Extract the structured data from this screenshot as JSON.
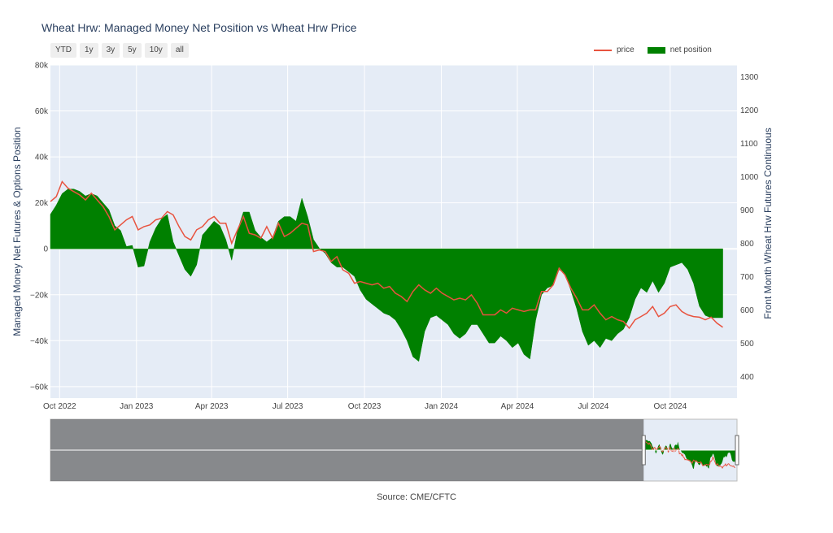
{
  "title": "Wheat Hrw: Managed Money Net Position vs Wheat Hrw Price",
  "range_buttons": [
    "YTD",
    "1y",
    "3y",
    "5y",
    "10y",
    "all"
  ],
  "legend": {
    "price_label": "price",
    "net_label": "net position"
  },
  "source": "Source: CME/CFTC",
  "colors": {
    "price": "#e8533f",
    "net": "#008000",
    "plot_bg": "#e5ecf6",
    "grid": "#ffffff"
  },
  "chart_data": {
    "type": "area",
    "title": "Wheat Hrw: Managed Money Net Position vs Wheat Hrw Price",
    "ylabel_left": "Managed Money Net Futures & Options Position",
    "ylabel_right": "Front Month Wheat Hrw Futures Continuous",
    "ylim_left": [
      -65000,
      80000
    ],
    "ylim_right": [
      335,
      1335
    ],
    "yticks_left": [
      -60000,
      -40000,
      -20000,
      0,
      20000,
      40000,
      60000,
      80000
    ],
    "yticks_left_labels": [
      "−60k",
      "−40k",
      "−20k",
      "0",
      "20k",
      "40k",
      "60k",
      "80k"
    ],
    "yticks_right": [
      400,
      500,
      600,
      700,
      800,
      900,
      1000,
      1100,
      1200,
      1300
    ],
    "xlim": [
      "2022-09-20",
      "2024-12-20"
    ],
    "xticks": [
      "2022-10-01",
      "2023-01-01",
      "2023-04-01",
      "2023-07-01",
      "2023-10-01",
      "2024-01-01",
      "2024-04-01",
      "2024-07-01",
      "2024-10-01"
    ],
    "xtick_labels": [
      "Oct 2022",
      "Jan 2023",
      "Apr 2023",
      "Jul 2023",
      "Oct 2023",
      "Jan 2024",
      "Apr 2024",
      "Jul 2024",
      "Oct 2024"
    ],
    "series": [
      {
        "name": "price",
        "type": "line",
        "axis": "right",
        "points": [
          [
            "2022-09-20",
            925
          ],
          [
            "2022-09-27",
            940
          ],
          [
            "2022-10-04",
            985
          ],
          [
            "2022-10-11",
            965
          ],
          [
            "2022-10-18",
            955
          ],
          [
            "2022-10-25",
            945
          ],
          [
            "2022-11-01",
            930
          ],
          [
            "2022-11-08",
            950
          ],
          [
            "2022-11-15",
            930
          ],
          [
            "2022-11-22",
            910
          ],
          [
            "2022-11-29",
            880
          ],
          [
            "2022-12-06",
            840
          ],
          [
            "2022-12-13",
            855
          ],
          [
            "2022-12-20",
            870
          ],
          [
            "2022-12-27",
            880
          ],
          [
            "2023-01-03",
            840
          ],
          [
            "2023-01-10",
            850
          ],
          [
            "2023-01-17",
            855
          ],
          [
            "2023-01-24",
            870
          ],
          [
            "2023-01-31",
            875
          ],
          [
            "2023-02-07",
            895
          ],
          [
            "2023-02-14",
            885
          ],
          [
            "2023-02-21",
            850
          ],
          [
            "2023-02-28",
            820
          ],
          [
            "2023-03-07",
            810
          ],
          [
            "2023-03-14",
            840
          ],
          [
            "2023-03-21",
            850
          ],
          [
            "2023-03-28",
            870
          ],
          [
            "2023-04-04",
            880
          ],
          [
            "2023-04-11",
            860
          ],
          [
            "2023-04-18",
            860
          ],
          [
            "2023-04-25",
            800
          ],
          [
            "2023-05-02",
            840
          ],
          [
            "2023-05-09",
            880
          ],
          [
            "2023-05-16",
            830
          ],
          [
            "2023-05-23",
            825
          ],
          [
            "2023-05-30",
            815
          ],
          [
            "2023-06-06",
            850
          ],
          [
            "2023-06-13",
            815
          ],
          [
            "2023-06-20",
            860
          ],
          [
            "2023-06-27",
            820
          ],
          [
            "2023-07-04",
            830
          ],
          [
            "2023-07-11",
            845
          ],
          [
            "2023-07-18",
            860
          ],
          [
            "2023-07-25",
            855
          ],
          [
            "2023-08-01",
            775
          ],
          [
            "2023-08-08",
            780
          ],
          [
            "2023-08-15",
            775
          ],
          [
            "2023-08-22",
            745
          ],
          [
            "2023-08-29",
            760
          ],
          [
            "2023-09-05",
            720
          ],
          [
            "2023-09-12",
            710
          ],
          [
            "2023-09-19",
            680
          ],
          [
            "2023-09-26",
            685
          ],
          [
            "2023-10-03",
            680
          ],
          [
            "2023-10-10",
            675
          ],
          [
            "2023-10-17",
            680
          ],
          [
            "2023-10-24",
            665
          ],
          [
            "2023-10-31",
            670
          ],
          [
            "2023-11-07",
            650
          ],
          [
            "2023-11-14",
            640
          ],
          [
            "2023-11-21",
            625
          ],
          [
            "2023-11-28",
            655
          ],
          [
            "2023-12-05",
            675
          ],
          [
            "2023-12-12",
            660
          ],
          [
            "2023-12-19",
            650
          ],
          [
            "2023-12-26",
            665
          ],
          [
            "2024-01-02",
            650
          ],
          [
            "2024-01-09",
            640
          ],
          [
            "2024-01-16",
            630
          ],
          [
            "2024-01-23",
            635
          ],
          [
            "2024-01-30",
            630
          ],
          [
            "2024-02-06",
            645
          ],
          [
            "2024-02-13",
            620
          ],
          [
            "2024-02-20",
            585
          ],
          [
            "2024-02-27",
            585
          ],
          [
            "2024-03-05",
            585
          ],
          [
            "2024-03-12",
            600
          ],
          [
            "2024-03-19",
            590
          ],
          [
            "2024-03-26",
            605
          ],
          [
            "2024-04-02",
            600
          ],
          [
            "2024-04-09",
            595
          ],
          [
            "2024-04-16",
            600
          ],
          [
            "2024-04-23",
            600
          ],
          [
            "2024-04-30",
            655
          ],
          [
            "2024-05-07",
            655
          ],
          [
            "2024-05-14",
            675
          ],
          [
            "2024-05-21",
            725
          ],
          [
            "2024-05-28",
            705
          ],
          [
            "2024-06-04",
            665
          ],
          [
            "2024-06-11",
            635
          ],
          [
            "2024-06-18",
            600
          ],
          [
            "2024-06-25",
            600
          ],
          [
            "2024-07-02",
            615
          ],
          [
            "2024-07-09",
            590
          ],
          [
            "2024-07-16",
            570
          ],
          [
            "2024-07-23",
            580
          ],
          [
            "2024-07-30",
            570
          ],
          [
            "2024-08-06",
            565
          ],
          [
            "2024-08-13",
            545
          ],
          [
            "2024-08-20",
            570
          ],
          [
            "2024-08-27",
            580
          ],
          [
            "2024-09-03",
            590
          ],
          [
            "2024-09-10",
            610
          ],
          [
            "2024-09-17",
            580
          ],
          [
            "2024-09-24",
            590
          ],
          [
            "2024-10-01",
            610
          ],
          [
            "2024-10-08",
            615
          ],
          [
            "2024-10-15",
            595
          ],
          [
            "2024-10-22",
            585
          ],
          [
            "2024-10-29",
            580
          ],
          [
            "2024-11-05",
            578
          ],
          [
            "2024-11-12",
            570
          ],
          [
            "2024-11-19",
            578
          ],
          [
            "2024-11-26",
            560
          ],
          [
            "2024-12-03",
            548
          ]
        ]
      },
      {
        "name": "net position",
        "type": "area",
        "axis": "left",
        "points": [
          [
            "2022-09-20",
            15000
          ],
          [
            "2022-09-27",
            19000
          ],
          [
            "2022-10-04",
            24000
          ],
          [
            "2022-10-11",
            26000
          ],
          [
            "2022-10-18",
            26000
          ],
          [
            "2022-10-25",
            25000
          ],
          [
            "2022-11-01",
            23000
          ],
          [
            "2022-11-08",
            24000
          ],
          [
            "2022-11-15",
            23000
          ],
          [
            "2022-11-22",
            20000
          ],
          [
            "2022-11-29",
            17000
          ],
          [
            "2022-12-06",
            10000
          ],
          [
            "2022-12-13",
            8000
          ],
          [
            "2022-12-20",
            1000
          ],
          [
            "2022-12-27",
            1500
          ],
          [
            "2023-01-03",
            -8000
          ],
          [
            "2023-01-10",
            -7500
          ],
          [
            "2023-01-17",
            3000
          ],
          [
            "2023-01-24",
            9000
          ],
          [
            "2023-01-31",
            13000
          ],
          [
            "2023-02-07",
            15000
          ],
          [
            "2023-02-14",
            3000
          ],
          [
            "2023-02-21",
            -3000
          ],
          [
            "2023-02-28",
            -9000
          ],
          [
            "2023-03-07",
            -12000
          ],
          [
            "2023-03-14",
            -7000
          ],
          [
            "2023-03-21",
            6000
          ],
          [
            "2023-03-28",
            9000
          ],
          [
            "2023-04-04",
            12000
          ],
          [
            "2023-04-11",
            10000
          ],
          [
            "2023-04-18",
            4000
          ],
          [
            "2023-04-25",
            -5000
          ],
          [
            "2023-05-02",
            8000
          ],
          [
            "2023-05-09",
            16000
          ],
          [
            "2023-05-16",
            16000
          ],
          [
            "2023-05-23",
            8000
          ],
          [
            "2023-05-30",
            5000
          ],
          [
            "2023-06-06",
            3000
          ],
          [
            "2023-06-13",
            5000
          ],
          [
            "2023-06-20",
            12000
          ],
          [
            "2023-06-27",
            14000
          ],
          [
            "2023-07-04",
            14000
          ],
          [
            "2023-07-11",
            12000
          ],
          [
            "2023-07-18",
            22000
          ],
          [
            "2023-07-25",
            14000
          ],
          [
            "2023-08-01",
            4000
          ],
          [
            "2023-08-08",
            200
          ],
          [
            "2023-08-15",
            -2000
          ],
          [
            "2023-08-22",
            -6000
          ],
          [
            "2023-08-29",
            -8000
          ],
          [
            "2023-09-05",
            -8000
          ],
          [
            "2023-09-12",
            -10000
          ],
          [
            "2023-09-19",
            -12000
          ],
          [
            "2023-09-26",
            -18000
          ],
          [
            "2023-10-03",
            -22000
          ],
          [
            "2023-10-10",
            -24000
          ],
          [
            "2023-10-17",
            -26000
          ],
          [
            "2023-10-24",
            -28000
          ],
          [
            "2023-10-31",
            -29000
          ],
          [
            "2023-11-07",
            -31000
          ],
          [
            "2023-11-14",
            -35000
          ],
          [
            "2023-11-21",
            -40000
          ],
          [
            "2023-11-28",
            -47000
          ],
          [
            "2023-12-05",
            -49000
          ],
          [
            "2023-12-12",
            -36000
          ],
          [
            "2023-12-19",
            -30000
          ],
          [
            "2023-12-26",
            -29000
          ],
          [
            "2024-01-02",
            -31000
          ],
          [
            "2024-01-09",
            -33000
          ],
          [
            "2024-01-16",
            -37000
          ],
          [
            "2024-01-23",
            -39000
          ],
          [
            "2024-01-30",
            -37000
          ],
          [
            "2024-02-06",
            -33000
          ],
          [
            "2024-02-13",
            -33000
          ],
          [
            "2024-02-20",
            -37000
          ],
          [
            "2024-02-27",
            -41000
          ],
          [
            "2024-03-05",
            -41000
          ],
          [
            "2024-03-12",
            -38000
          ],
          [
            "2024-03-19",
            -40000
          ],
          [
            "2024-03-26",
            -43000
          ],
          [
            "2024-04-02",
            -41000
          ],
          [
            "2024-04-09",
            -46000
          ],
          [
            "2024-04-16",
            -48000
          ],
          [
            "2024-04-23",
            -31000
          ],
          [
            "2024-04-30",
            -20000
          ],
          [
            "2024-05-07",
            -17000
          ],
          [
            "2024-05-14",
            -16000
          ],
          [
            "2024-05-21",
            -9000
          ],
          [
            "2024-05-28",
            -11000
          ],
          [
            "2024-06-04",
            -18000
          ],
          [
            "2024-06-11",
            -26000
          ],
          [
            "2024-06-18",
            -36000
          ],
          [
            "2024-06-25",
            -42000
          ],
          [
            "2024-07-02",
            -40000
          ],
          [
            "2024-07-09",
            -43000
          ],
          [
            "2024-07-16",
            -39000
          ],
          [
            "2024-07-23",
            -40000
          ],
          [
            "2024-07-30",
            -37000
          ],
          [
            "2024-08-06",
            -35000
          ],
          [
            "2024-08-13",
            -30000
          ],
          [
            "2024-08-20",
            -22000
          ],
          [
            "2024-08-27",
            -17000
          ],
          [
            "2024-09-03",
            -19000
          ],
          [
            "2024-09-10",
            -14000
          ],
          [
            "2024-09-17",
            -19000
          ],
          [
            "2024-09-24",
            -15000
          ],
          [
            "2024-10-01",
            -8000
          ],
          [
            "2024-10-08",
            -7000
          ],
          [
            "2024-10-15",
            -6000
          ],
          [
            "2024-10-22",
            -9000
          ],
          [
            "2024-10-29",
            -15000
          ],
          [
            "2024-11-05",
            -25000
          ],
          [
            "2024-11-12",
            -29000
          ],
          [
            "2024-11-19",
            -30000
          ],
          [
            "2024-11-26",
            -30000
          ],
          [
            "2024-12-03",
            -30000
          ]
        ]
      }
    ],
    "range_slider": {
      "visible": true,
      "selection": [
        "2022-09-20",
        "2024-12-03"
      ]
    }
  }
}
